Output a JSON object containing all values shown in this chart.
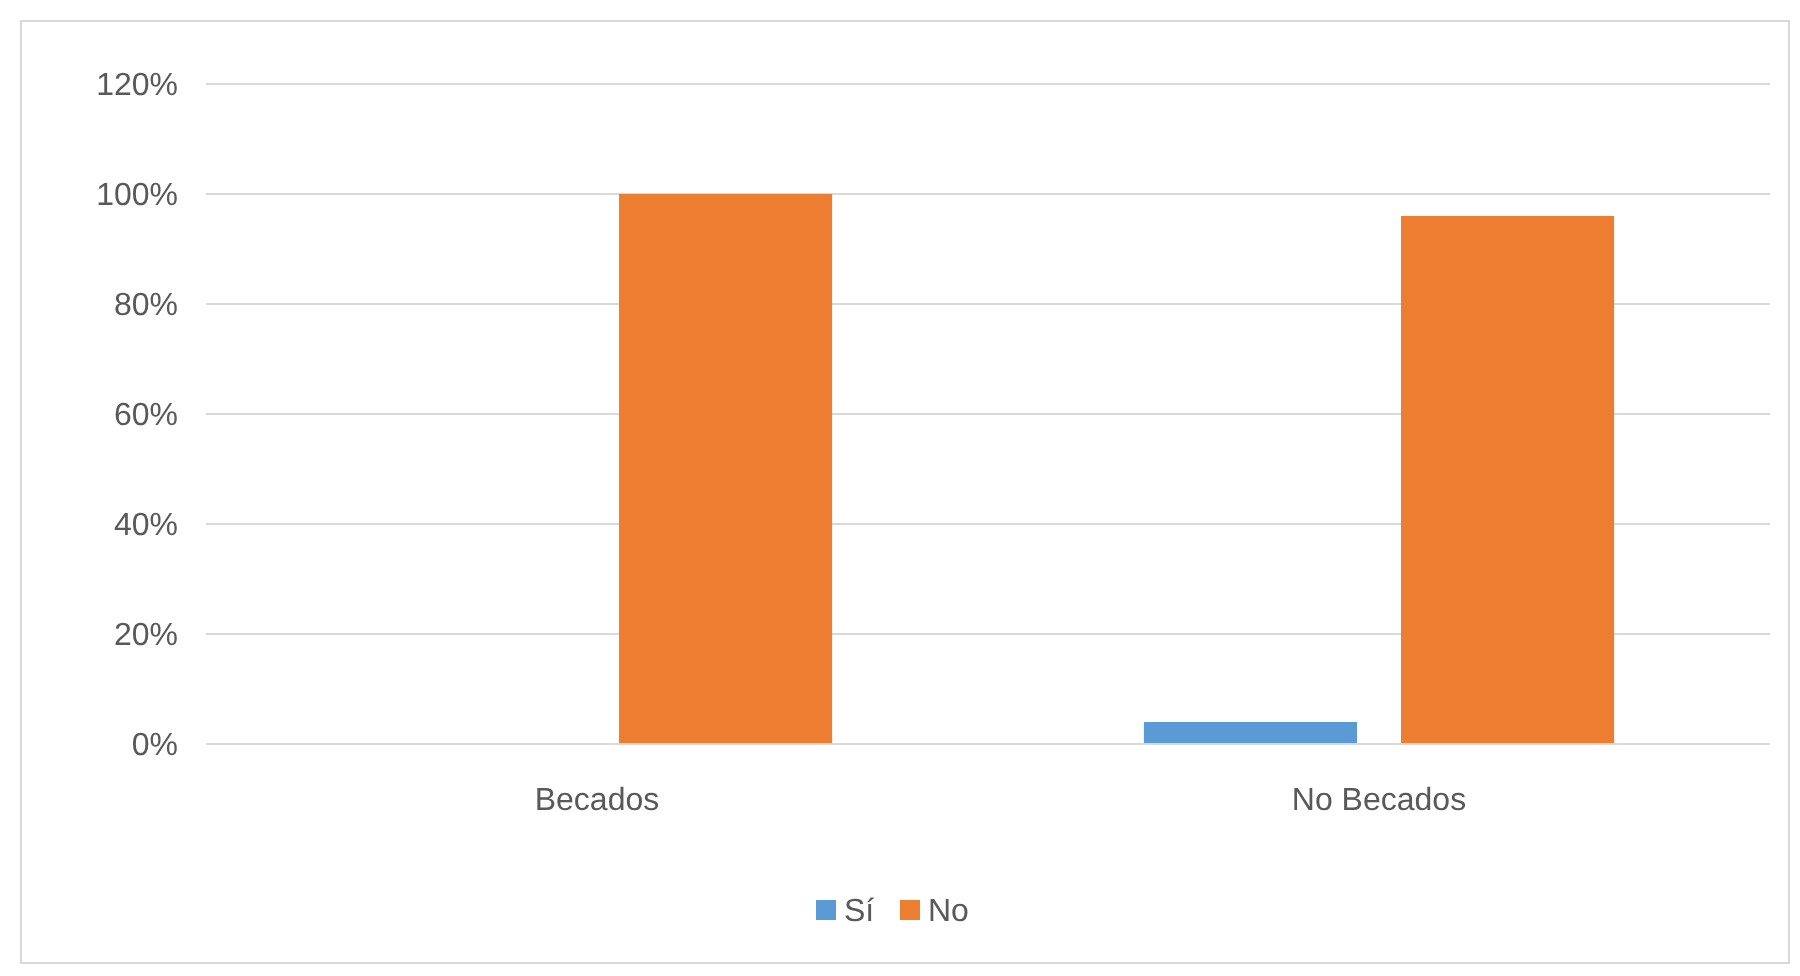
{
  "chart_data": {
    "type": "bar",
    "categories": [
      "Becados",
      "No Becados"
    ],
    "series": [
      {
        "name": "Sí",
        "color": "#5b9bd5",
        "values": [
          0,
          4
        ]
      },
      {
        "name": "No",
        "color": "#ed7d31",
        "values": [
          100,
          96
        ]
      }
    ],
    "ylim": [
      0,
      120
    ],
    "yticks": [
      {
        "value": 0,
        "label": "0%"
      },
      {
        "value": 20,
        "label": "20%"
      },
      {
        "value": 40,
        "label": "40%"
      },
      {
        "value": 60,
        "label": "60%"
      },
      {
        "value": 80,
        "label": "80%"
      },
      {
        "value": 100,
        "label": "100%"
      },
      {
        "value": 120,
        "label": "120%"
      }
    ],
    "grid": "y",
    "legend": "bottom"
  }
}
